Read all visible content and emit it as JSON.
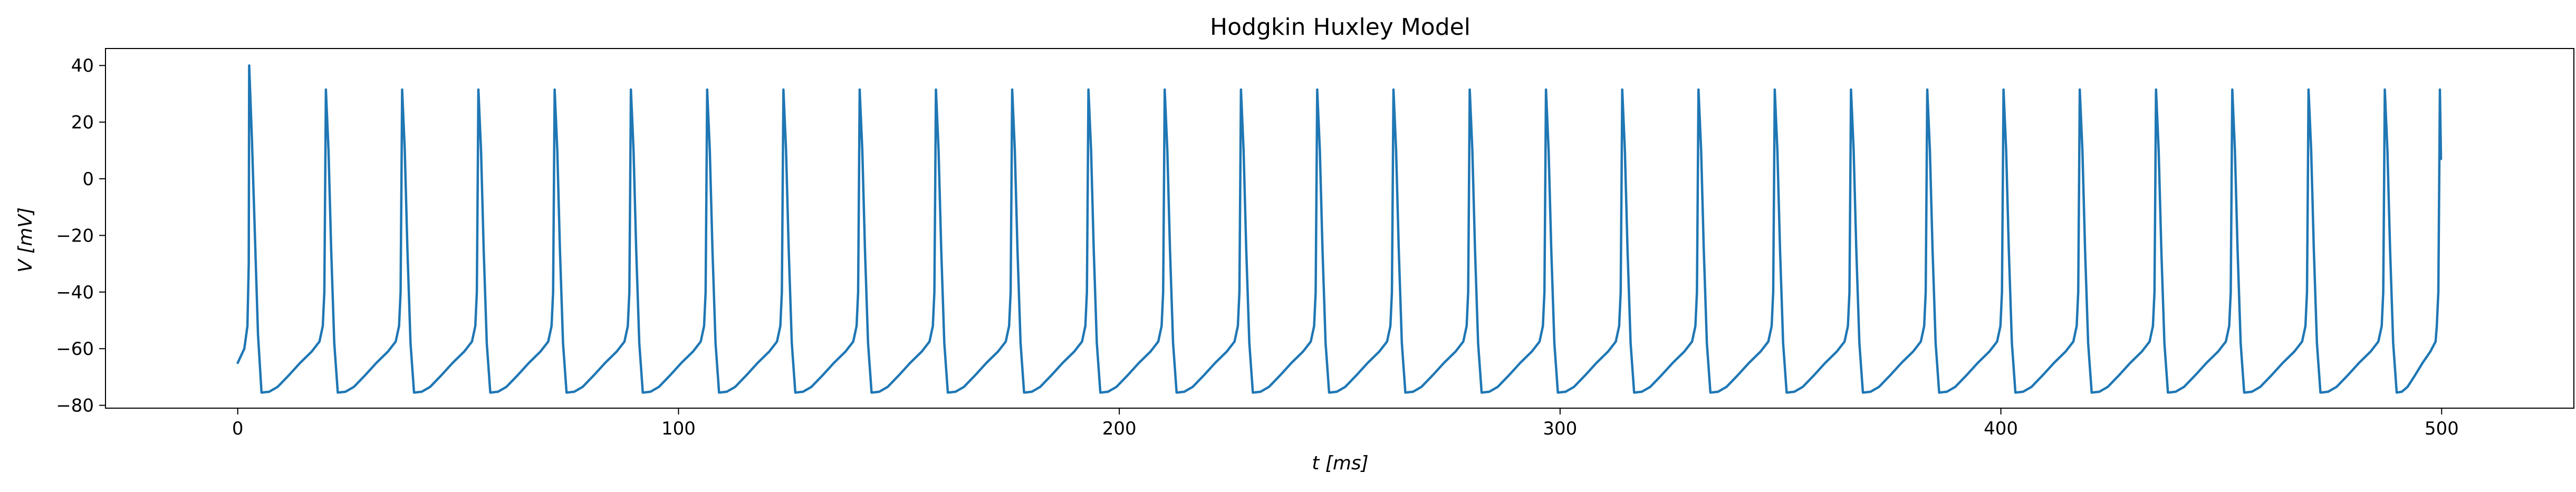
{
  "chart_data": {
    "type": "line",
    "title": "Hodgkin Huxley Model",
    "xlabel": "t [ms]",
    "ylabel": "V [mV]",
    "xlim": [
      -30,
      530
    ],
    "ylim": [
      -81,
      46
    ],
    "grid": false,
    "x_ticks": [
      0,
      100,
      200,
      300,
      400,
      500
    ],
    "y_ticks": [
      -80,
      -60,
      -40,
      -20,
      0,
      20,
      40
    ],
    "x_tick_labels": [
      "0",
      "100",
      "200",
      "300",
      "400",
      "500"
    ],
    "y_tick_labels": [
      "−80",
      "−60",
      "−40",
      "−20",
      "0",
      "20",
      "40"
    ],
    "series": [
      {
        "color": "#1f77b4",
        "initial_voltage": -65,
        "first_spike": {
          "time": 2.6,
          "peak": 40
        },
        "spike_times": [
          20.0,
          37.3,
          54.6,
          71.9,
          89.2,
          106.5,
          123.8,
          141.1,
          158.4,
          175.7,
          193.0,
          210.3,
          227.6,
          244.9,
          262.2,
          279.5,
          296.8,
          314.1,
          331.4,
          348.7,
          366.0,
          383.3,
          400.6,
          417.9,
          435.2,
          452.5,
          469.8,
          487.1,
          499.6
        ],
        "spike_peak": 31.5,
        "trough": -75.5,
        "end_value": 7
      }
    ]
  }
}
